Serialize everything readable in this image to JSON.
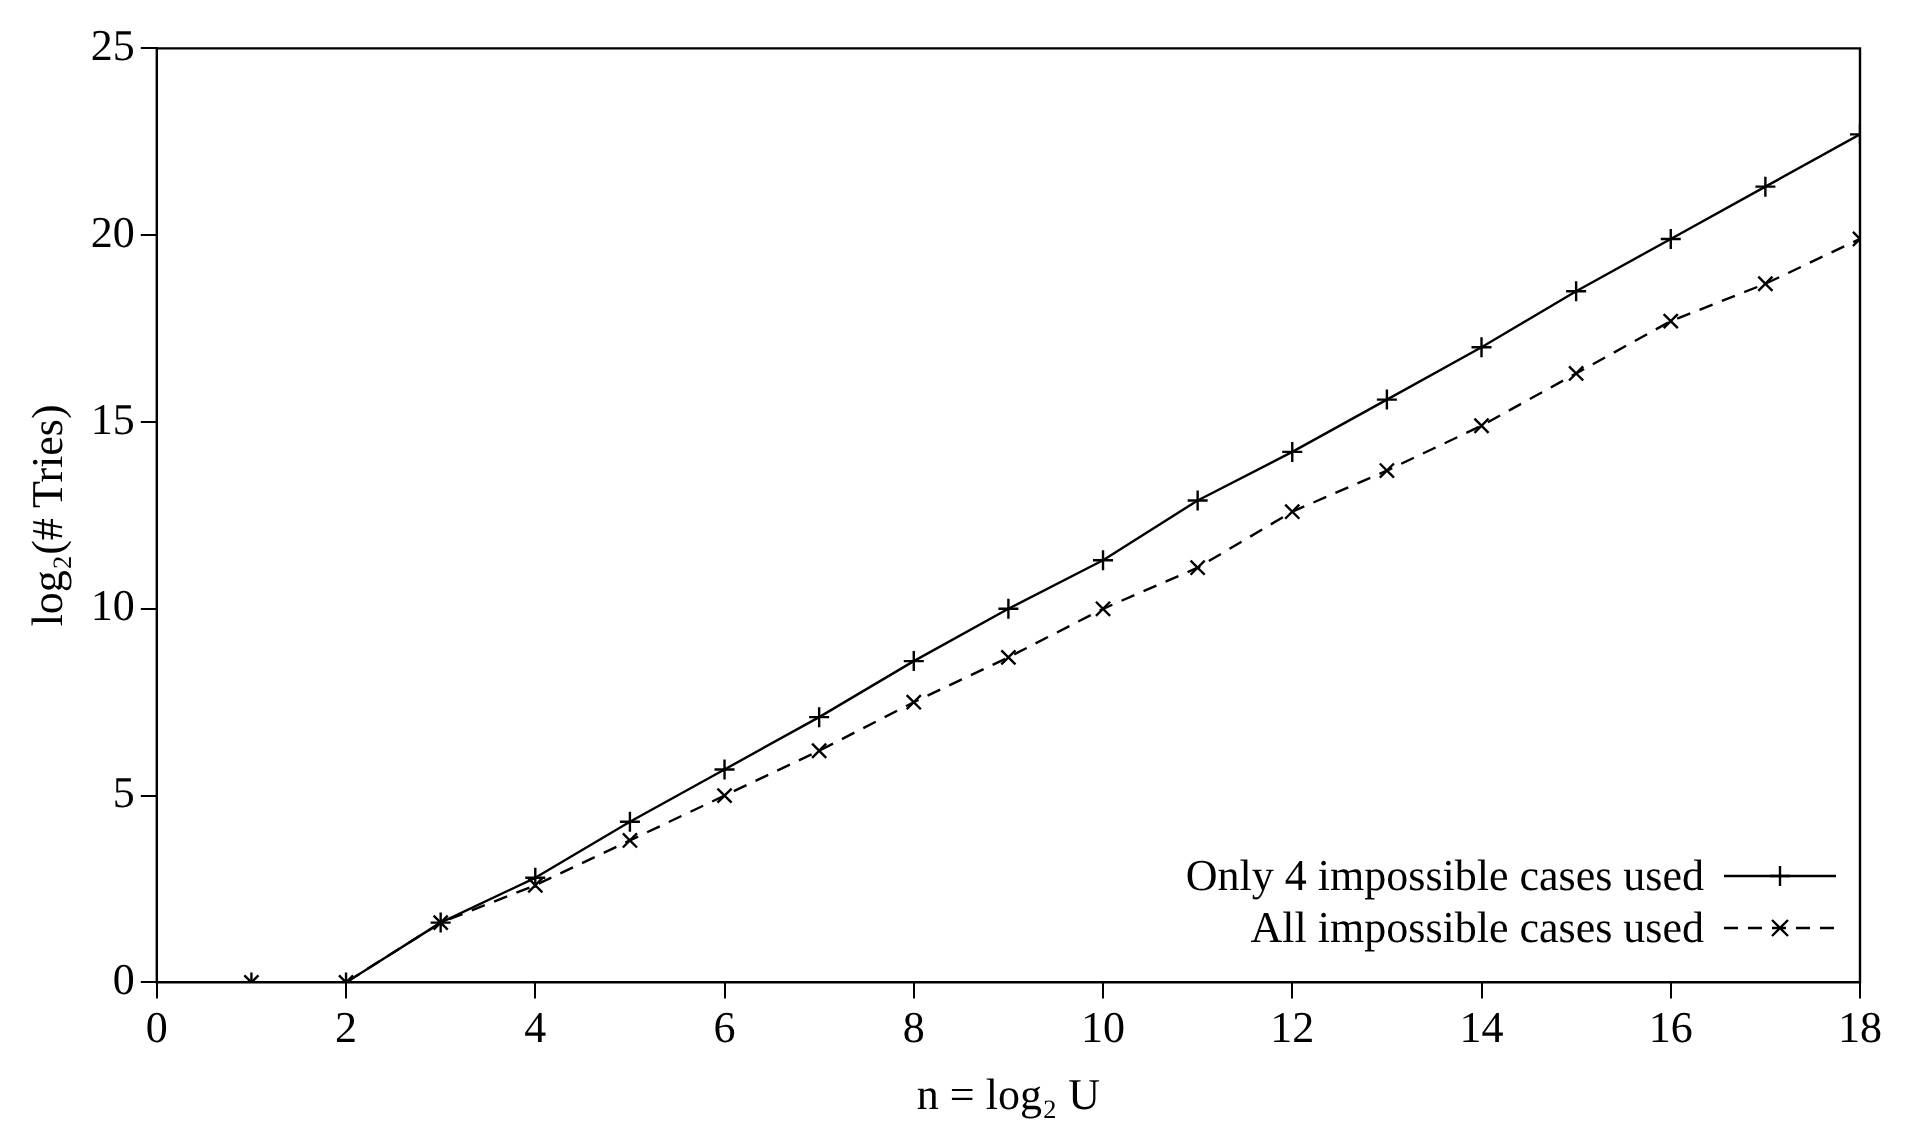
{
  "chart_data": {
    "type": "line",
    "xlabel": "n = log₂ U",
    "ylabel": "log₂(# Tries)",
    "x": [
      1,
      2,
      3,
      4,
      5,
      6,
      7,
      8,
      9,
      10,
      11,
      12,
      13,
      14,
      15,
      16,
      17,
      18
    ],
    "series": [
      {
        "name": "Only 4 impossible cases used",
        "color": "#000000",
        "marker": "cross",
        "line_style": "solid",
        "values": [
          0,
          0,
          1.6,
          2.8,
          4.3,
          5.7,
          7.1,
          8.6,
          10.0,
          11.3,
          12.9,
          14.2,
          15.6,
          17.0,
          18.5,
          19.9,
          21.3,
          22.7
        ]
      },
      {
        "name": "All impossible cases used",
        "color": "#000000",
        "marker": "cross",
        "line_style": "dashed",
        "values": [
          0,
          0,
          1.6,
          2.6,
          3.8,
          5.0,
          6.2,
          7.5,
          8.7,
          10.0,
          11.1,
          12.6,
          13.7,
          14.9,
          16.3,
          17.7,
          18.7,
          19.9
        ]
      }
    ],
    "xlim": [
      0,
      18
    ],
    "xticks": [
      0,
      2,
      4,
      6,
      8,
      10,
      12,
      14,
      16,
      18
    ],
    "ylim": [
      0,
      25
    ],
    "yticks": [
      0,
      5,
      10,
      15,
      20,
      25
    ],
    "grid": false,
    "legend": "bottom right"
  }
}
